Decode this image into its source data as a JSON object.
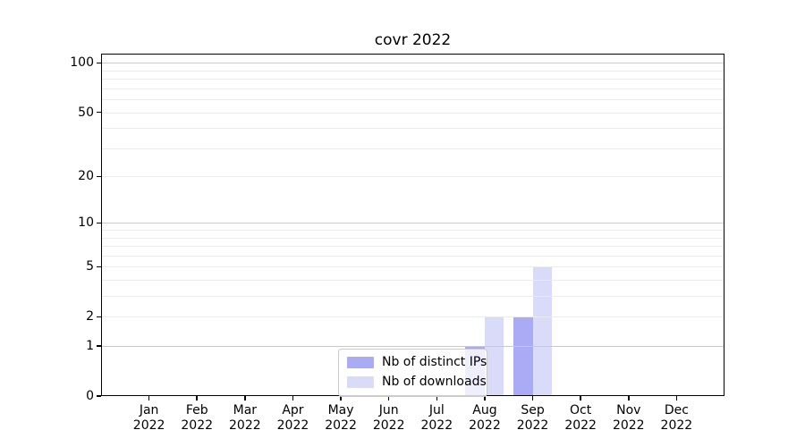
{
  "chart_data": {
    "type": "bar",
    "title": "covr 2022",
    "x_tick_labels_line1": [
      "Jan",
      "Feb",
      "Mar",
      "Apr",
      "May",
      "Jun",
      "Jul",
      "Aug",
      "Sep",
      "Oct",
      "Nov",
      "Dec"
    ],
    "x_tick_labels_line2": "2022",
    "categories": [
      "Jan 2022",
      "Feb 2022",
      "Mar 2022",
      "Apr 2022",
      "May 2022",
      "Jun 2022",
      "Jul 2022",
      "Aug 2022",
      "Sep 2022",
      "Oct 2022",
      "Nov 2022",
      "Dec 2022"
    ],
    "series": [
      {
        "name": "Nb of distinct IPs",
        "color": "#abaaf5",
        "values": [
          0,
          0,
          0,
          0,
          0,
          0,
          0,
          1,
          2,
          0,
          0,
          0
        ]
      },
      {
        "name": "Nb of downloads",
        "color": "#dadaf9",
        "values": [
          0,
          0,
          0,
          0,
          0,
          0,
          0,
          2,
          5,
          0,
          0,
          0
        ]
      }
    ],
    "yscale": "log1p",
    "ylim": [
      0,
      113
    ],
    "y_ticks": [
      {
        "value": 0,
        "label": "0"
      },
      {
        "value": 1,
        "label": "1"
      },
      {
        "value": 2,
        "label": "2"
      },
      {
        "value": 5,
        "label": "5"
      },
      {
        "value": 10,
        "label": "10"
      },
      {
        "value": 20,
        "label": "20"
      },
      {
        "value": 50,
        "label": "50"
      },
      {
        "value": 100,
        "label": "100"
      }
    ],
    "y_major_gridlines": [
      1,
      10,
      100
    ],
    "y_minor_gridlines": [
      2,
      3,
      4,
      5,
      6,
      7,
      8,
      9,
      20,
      30,
      40,
      50,
      60,
      70,
      80,
      90
    ],
    "grid": "horizontal",
    "legend_position": "lower center",
    "colors": {
      "major_grid": "#c9c9c9",
      "minor_grid": "#ebebeb",
      "spine": "#000000",
      "background": "#ffffff"
    }
  }
}
